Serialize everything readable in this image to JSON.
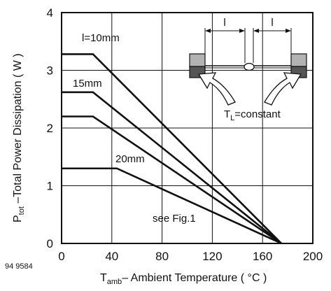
{
  "chart_data": {
    "type": "line",
    "title": "",
    "xlabel_main": "T",
    "xlabel_sub": "amb",
    "xlabel_rest": "– Ambient Temperature ( °C )",
    "ylabel_main": "P",
    "ylabel_sub": "tot",
    "ylabel_rest": " –Total Power Dissipation ( W )",
    "xlim": [
      0,
      200
    ],
    "ylim": [
      0,
      4
    ],
    "xticks": [
      0,
      40,
      80,
      120,
      160,
      200
    ],
    "yticks": [
      0,
      1,
      2,
      3,
      4
    ],
    "grid": true,
    "series": [
      {
        "name": "l=10mm",
        "x": [
          0,
          25,
          175
        ],
        "y": [
          3.28,
          3.28,
          0
        ]
      },
      {
        "name": "15mm",
        "x": [
          0,
          25,
          175
        ],
        "y": [
          2.62,
          2.62,
          0
        ]
      },
      {
        "name": "",
        "x": [
          0,
          25,
          175
        ],
        "y": [
          2.2,
          2.2,
          0
        ]
      },
      {
        "name": "20mm",
        "x": [
          0,
          44,
          175
        ],
        "y": [
          1.3,
          1.3,
          0
        ]
      }
    ],
    "annotations": {
      "curve_10": "l=10mm",
      "curve_15": "15mm",
      "curve_20": "20mm",
      "see_fig": "see Fig.1",
      "tl_main": "T",
      "tl_sub": "L",
      "tl_rest": "=constant",
      "dim_left": "l",
      "dim_right": "l"
    },
    "figure_id": "94 9584"
  }
}
